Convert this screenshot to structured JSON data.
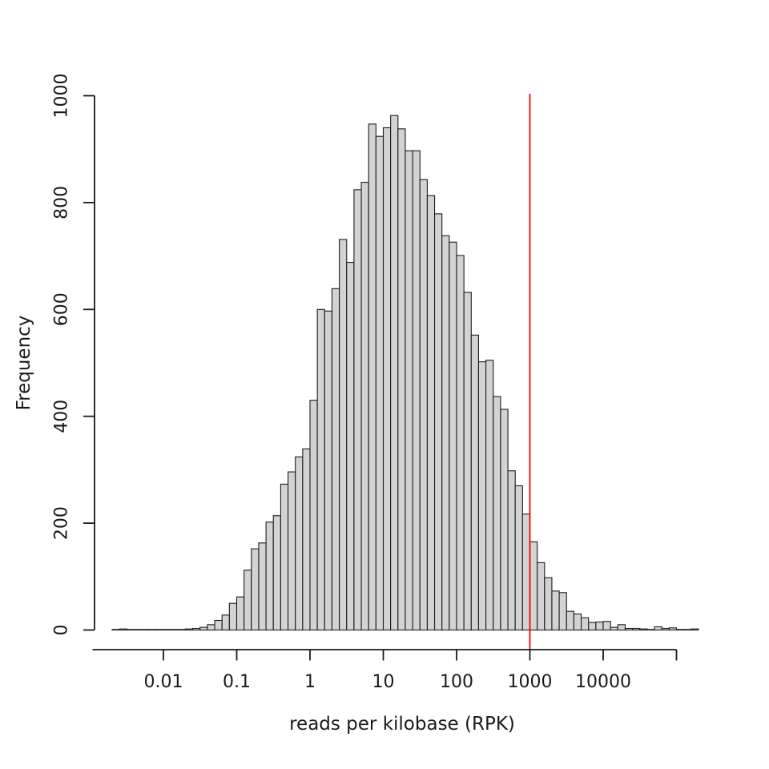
{
  "figure": {
    "background": "#ffffff",
    "axis_color": "#1a1a1a"
  },
  "chart_data": {
    "type": "bar",
    "subtype": "histogram",
    "title": "",
    "xlabel": "reads per kilobase (RPK)",
    "ylabel": "Frequency",
    "x_scale": "log10",
    "grid": false,
    "legend": null,
    "ylim": [
      0,
      1000
    ],
    "xlim_log10": [
      -2.97,
      5.33
    ],
    "bin_edges_log10": {
      "start": -2.7,
      "step": 0.1,
      "count": 80
    },
    "frequencies": [
      1,
      2,
      1,
      1,
      1,
      1,
      1,
      1,
      1,
      1,
      2,
      3,
      5,
      10,
      18,
      28,
      50,
      62,
      112,
      152,
      163,
      202,
      214,
      273,
      296,
      324,
      339,
      430,
      600,
      597,
      639,
      731,
      688,
      824,
      838,
      947,
      924,
      940,
      963,
      938,
      897,
      897,
      843,
      813,
      779,
      738,
      726,
      701,
      632,
      552,
      502,
      505,
      437,
      413,
      298,
      270,
      217,
      165,
      126,
      98,
      73,
      70,
      35,
      30,
      23,
      14,
      15,
      16,
      5,
      10,
      3,
      3,
      2,
      1,
      6,
      3,
      4,
      1,
      1,
      2
    ],
    "x_ticks": [
      {
        "value": 0.01,
        "label": "0.01"
      },
      {
        "value": 0.1,
        "label": "0.1"
      },
      {
        "value": 1,
        "label": "1"
      },
      {
        "value": 10,
        "label": "10"
      },
      {
        "value": 100,
        "label": "100"
      },
      {
        "value": 1000,
        "label": "1000"
      },
      {
        "value": 10000,
        "label": "10000"
      },
      {
        "value": 100000,
        "label": ""
      }
    ],
    "y_ticks": [
      0,
      200,
      400,
      600,
      800,
      1000
    ],
    "vline": {
      "x": 1000,
      "color": "#ff0000"
    },
    "bar_fill": "#d3d3d3",
    "bar_stroke": "#1c1c1c"
  }
}
